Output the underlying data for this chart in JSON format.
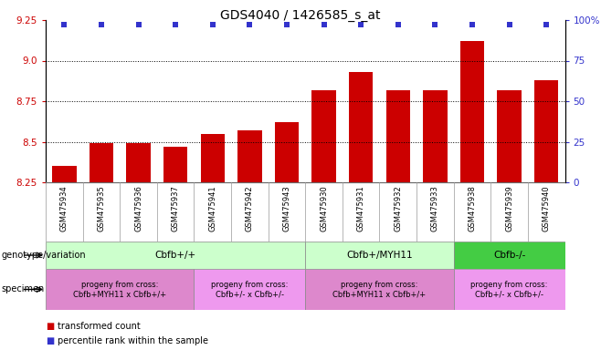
{
  "title": "GDS4040 / 1426585_s_at",
  "samples": [
    "GSM475934",
    "GSM475935",
    "GSM475936",
    "GSM475937",
    "GSM475941",
    "GSM475942",
    "GSM475943",
    "GSM475930",
    "GSM475931",
    "GSM475932",
    "GSM475933",
    "GSM475938",
    "GSM475939",
    "GSM475940"
  ],
  "bar_values": [
    8.35,
    8.49,
    8.49,
    8.47,
    8.55,
    8.57,
    8.62,
    8.82,
    8.93,
    8.82,
    8.82,
    9.12,
    8.82,
    8.88
  ],
  "percentile_values": [
    97,
    97,
    97,
    97,
    97,
    97,
    97,
    97,
    97,
    97,
    97,
    97,
    97,
    97
  ],
  "bar_color": "#cc0000",
  "percentile_color": "#3333cc",
  "ylim_left": [
    8.25,
    9.25
  ],
  "ylim_right": [
    0,
    100
  ],
  "yticks_left": [
    8.25,
    8.5,
    8.75,
    9.0,
    9.25
  ],
  "yticks_right": [
    0,
    25,
    50,
    75,
    100
  ],
  "ytick_labels_right": [
    "0",
    "25",
    "50",
    "75",
    "100%"
  ],
  "grid_values": [
    8.5,
    8.75,
    9.0
  ],
  "genotype_groups": [
    {
      "label": "Cbfb+/+",
      "start": 0,
      "end": 7,
      "color": "#ccffcc"
    },
    {
      "label": "Cbfb+/MYH11",
      "start": 7,
      "end": 11,
      "color": "#ccffcc"
    },
    {
      "label": "Cbfb-/-",
      "start": 11,
      "end": 14,
      "color": "#44cc44"
    }
  ],
  "specimen_groups": [
    {
      "label": "progeny from cross:\nCbfb+MYH11 x Cbfb+/+",
      "start": 0,
      "end": 4,
      "color": "#dd88cc"
    },
    {
      "label": "progeny from cross:\nCbfb+/- x Cbfb+/-",
      "start": 4,
      "end": 7,
      "color": "#ee88ee"
    },
    {
      "label": "progeny from cross:\nCbfb+MYH11 x Cbfb+/+",
      "start": 7,
      "end": 11,
      "color": "#dd88cc"
    },
    {
      "label": "progeny from cross:\nCbfb+/- x Cbfb+/-",
      "start": 11,
      "end": 14,
      "color": "#ee88ee"
    }
  ],
  "legend_items": [
    {
      "color": "#cc0000",
      "label": "transformed count"
    },
    {
      "color": "#3333cc",
      "label": "percentile rank within the sample"
    }
  ],
  "fig_width": 6.58,
  "fig_height": 3.84,
  "dpi": 100
}
